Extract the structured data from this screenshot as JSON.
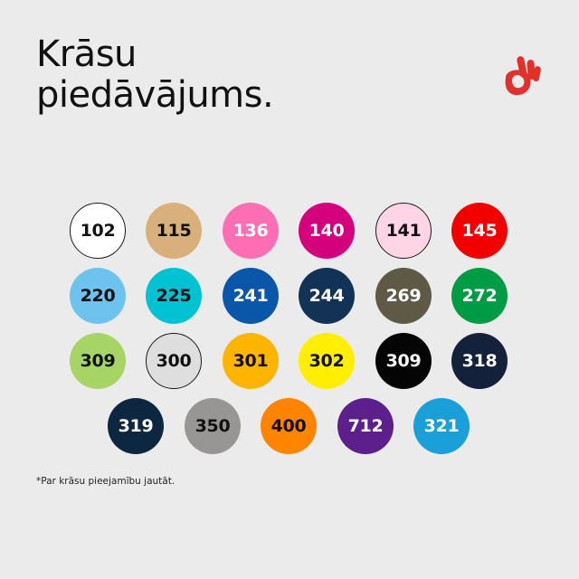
{
  "title": {
    "line1": "Krāsu",
    "line2": "piedāvājums."
  },
  "logo": {
    "icon": "ok-hand-icon",
    "color": "#e2302b"
  },
  "swatches": [
    {
      "label": "102",
      "color": "#ffffff",
      "text": "#111111",
      "border": true
    },
    {
      "label": "115",
      "color": "#d9b07c",
      "text": "#111111",
      "border": false
    },
    {
      "label": "136",
      "color": "#ff6eb2",
      "text": "#ffffff",
      "border": false
    },
    {
      "label": "140",
      "color": "#d5007c",
      "text": "#ffffff",
      "border": false
    },
    {
      "label": "141",
      "color": "#ffd5e6",
      "text": "#111111",
      "border": true
    },
    {
      "label": "145",
      "color": "#f20000",
      "text": "#ffffff",
      "border": false
    },
    {
      "label": "220",
      "color": "#6ec2ee",
      "text": "#111111",
      "border": false
    },
    {
      "label": "225",
      "color": "#00c2d3",
      "text": "#111111",
      "border": false
    },
    {
      "label": "241",
      "color": "#0a56a8",
      "text": "#ffffff",
      "border": false
    },
    {
      "label": "244",
      "color": "#123356",
      "text": "#ffffff",
      "border": false
    },
    {
      "label": "269",
      "color": "#5f5a46",
      "text": "#ffffff",
      "border": false
    },
    {
      "label": "272",
      "color": "#009b45",
      "text": "#ffffff",
      "border": false
    },
    {
      "label": "309",
      "color": "#a6d465",
      "text": "#111111",
      "border": false
    },
    {
      "label": "300",
      "color": "#dedede",
      "text": "#111111",
      "border": true
    },
    {
      "label": "301",
      "color": "#ffb400",
      "text": "#111111",
      "border": false
    },
    {
      "label": "302",
      "color": "#ffee00",
      "text": "#111111",
      "border": false
    },
    {
      "label": "309",
      "color": "#050505",
      "text": "#ffffff",
      "border": false
    },
    {
      "label": "318",
      "color": "#14213a",
      "text": "#ffffff",
      "border": false
    },
    {
      "label": "319",
      "color": "#0e2740",
      "text": "#ffffff",
      "border": false
    },
    {
      "label": "350",
      "color": "#979695",
      "text": "#111111",
      "border": false
    },
    {
      "label": "400",
      "color": "#ff8500",
      "text": "#111111",
      "border": false
    },
    {
      "label": "712",
      "color": "#5c1f8c",
      "text": "#ffffff",
      "border": false
    },
    {
      "label": "321",
      "color": "#1a9fd8",
      "text": "#ffffff",
      "border": false
    }
  ],
  "footnote": "*Par krāsu pieejamību jautāt."
}
